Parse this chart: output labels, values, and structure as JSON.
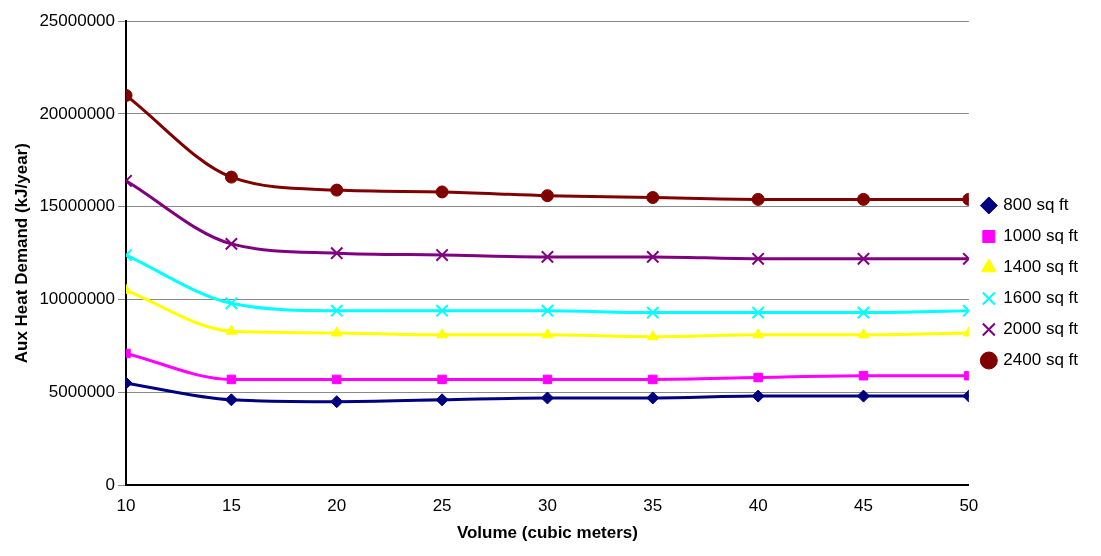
{
  "chart_data": {
    "type": "line",
    "xlabel": "Volume (cubic meters)",
    "ylabel": "Aux Heat Demand (kJ/year)",
    "x": [
      10,
      15,
      20,
      25,
      30,
      35,
      40,
      45,
      50
    ],
    "xlim": [
      10,
      50
    ],
    "xticks": [
      10,
      15,
      20,
      25,
      30,
      35,
      40,
      45,
      50
    ],
    "ylim": [
      0,
      25000000
    ],
    "yticks": [
      0,
      5000000,
      10000000,
      15000000,
      20000000,
      25000000
    ],
    "grid": "y",
    "legend": "right",
    "line_style": "solid",
    "series": [
      {
        "name": "800 sq ft",
        "color": "#000080",
        "marker": "diamond",
        "values": [
          5500000,
          4600000,
          4500000,
          4600000,
          4700000,
          4700000,
          4800000,
          4800000,
          4800000
        ]
      },
      {
        "name": "1000 sq ft",
        "color": "#ff00ff",
        "marker": "square",
        "values": [
          7100000,
          5700000,
          5700000,
          5700000,
          5700000,
          5700000,
          5800000,
          5900000,
          5900000
        ]
      },
      {
        "name": "1400 sq ft",
        "color": "#ffff00",
        "marker": "triangle",
        "values": [
          10500000,
          8300000,
          8200000,
          8100000,
          8100000,
          8000000,
          8100000,
          8100000,
          8200000
        ]
      },
      {
        "name": "1600 sq ft",
        "color": "#00ffff",
        "marker": "cross",
        "values": [
          12400000,
          9800000,
          9400000,
          9400000,
          9400000,
          9300000,
          9300000,
          9300000,
          9400000
        ]
      },
      {
        "name": "2000 sq ft",
        "color": "#800080",
        "marker": "cross",
        "values": [
          16400000,
          13000000,
          12500000,
          12400000,
          12300000,
          12300000,
          12200000,
          12200000,
          12200000
        ]
      },
      {
        "name": "2400 sq ft",
        "color": "#800000",
        "marker": "circle",
        "values": [
          21000000,
          16600000,
          15900000,
          15800000,
          15600000,
          15500000,
          15400000,
          15400000,
          15400000
        ]
      }
    ]
  }
}
